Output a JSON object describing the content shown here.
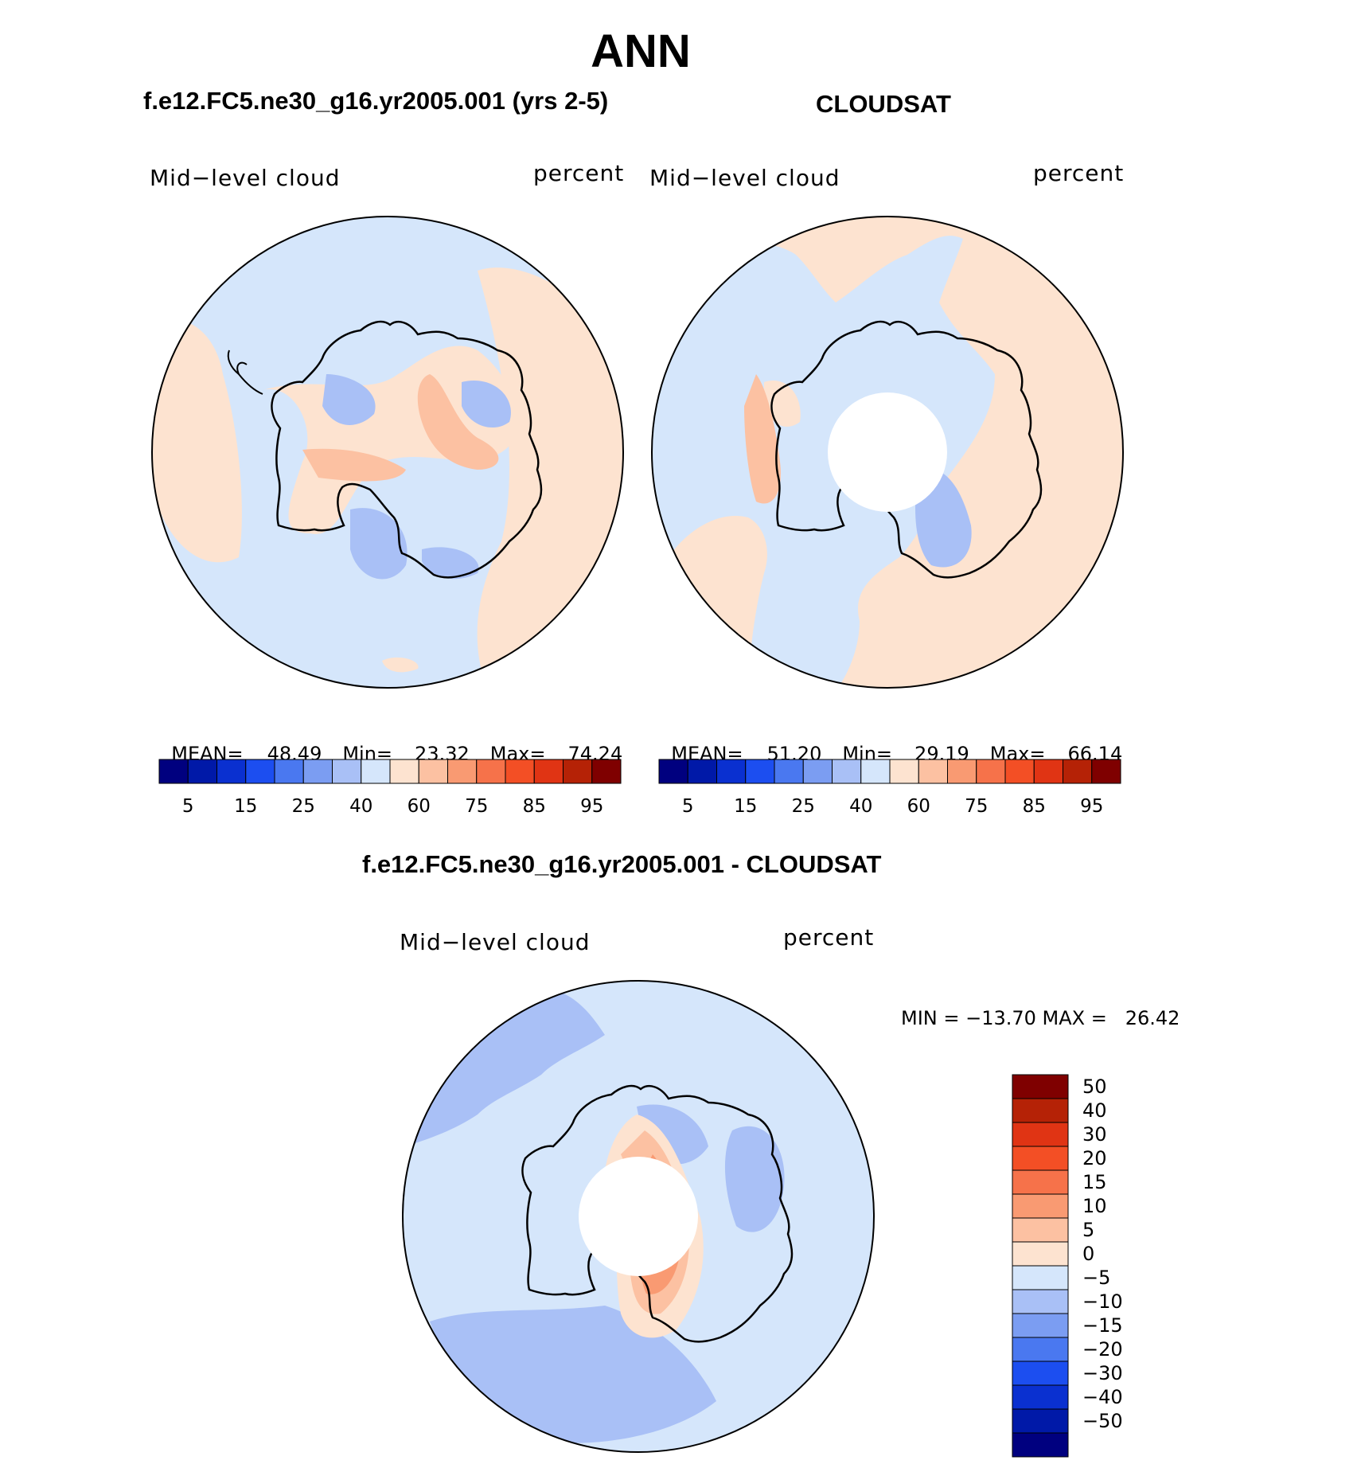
{
  "title": "ANN",
  "panels": {
    "model": {
      "case_title": "f.e12.FC5.ne30_g16.yr2005.001 (yrs 2-5)",
      "left_label": "Mid−level cloud",
      "right_label": "percent",
      "mean_label": "MEAN=",
      "mean_value": "48.49",
      "min_label": "Min=",
      "min_value": "23.32",
      "max_label": "Max=",
      "max_value": "74.24"
    },
    "obs": {
      "case_title": "CLOUDSAT",
      "left_label": "Mid−level cloud",
      "right_label": "percent",
      "mean_label": "MEAN=",
      "mean_value": "51.20",
      "min_label": "Min=",
      "min_value": "29.19",
      "max_label": "Max=",
      "max_value": "66.14"
    },
    "diff": {
      "case_title": "f.e12.FC5.ne30_g16.yr2005.001 - CLOUDSAT",
      "left_label": "Mid−level cloud",
      "right_label": "percent",
      "minmax_text": "MIN = −13.70 MAX =   26.42"
    }
  },
  "chart_data": [
    {
      "type": "heatmap",
      "projection": "south-polar-stereographic",
      "title": "f.e12.FC5.ne30_g16.yr2005.001 (yrs 2-5)",
      "variable": "Mid−level cloud",
      "units": "percent",
      "mean": 48.49,
      "min": 23.32,
      "max": 74.24,
      "colorbar": {
        "orientation": "horizontal",
        "levels": [
          5,
          10,
          15,
          20,
          25,
          30,
          40,
          50,
          60,
          70,
          75,
          80,
          85,
          90,
          95
        ],
        "tick_labels": [
          "5",
          "15",
          "25",
          "40",
          "60",
          "75",
          "85",
          "95"
        ],
        "colors": [
          "#00007f",
          "#0019a8",
          "#0a30d0",
          "#1c4ef0",
          "#4a78f0",
          "#7b9df2",
          "#a9c0f6",
          "#d5e6fb",
          "#fde3d0",
          "#fcc1a2",
          "#f99a72",
          "#f6724a",
          "#f34f25",
          "#e03414",
          "#b52206",
          "#7f0000"
        ]
      }
    },
    {
      "type": "heatmap",
      "projection": "south-polar-stereographic",
      "title": "CLOUDSAT",
      "variable": "Mid−level cloud",
      "units": "percent",
      "mean": 51.2,
      "min": 29.19,
      "max": 66.14,
      "colorbar": {
        "orientation": "horizontal",
        "levels": [
          5,
          10,
          15,
          20,
          25,
          30,
          40,
          50,
          60,
          70,
          75,
          80,
          85,
          90,
          95
        ],
        "tick_labels": [
          "5",
          "15",
          "25",
          "40",
          "60",
          "75",
          "85",
          "95"
        ],
        "colors": [
          "#00007f",
          "#0019a8",
          "#0a30d0",
          "#1c4ef0",
          "#4a78f0",
          "#7b9df2",
          "#a9c0f6",
          "#d5e6fb",
          "#fde3d0",
          "#fcc1a2",
          "#f99a72",
          "#f6724a",
          "#f34f25",
          "#e03414",
          "#b52206",
          "#7f0000"
        ]
      }
    },
    {
      "type": "heatmap",
      "projection": "south-polar-stereographic",
      "title": "f.e12.FC5.ne30_g16.yr2005.001 - CLOUDSAT",
      "variable": "Mid−level cloud",
      "units": "percent",
      "min": -13.7,
      "max": 26.42,
      "colorbar": {
        "orientation": "vertical",
        "tick_labels": [
          "50",
          "40",
          "30",
          "20",
          "15",
          "10",
          "5",
          "0",
          "−5",
          "−10",
          "−15",
          "−20",
          "−30",
          "−40",
          "−50"
        ],
        "colors": [
          "#7f0000",
          "#b52206",
          "#e03414",
          "#f34f25",
          "#f6724a",
          "#f99a72",
          "#fcc1a2",
          "#fde3d0",
          "#d5e6fb",
          "#a9c0f6",
          "#7b9df2",
          "#4a78f0",
          "#1c4ef0",
          "#0a30d0",
          "#0019a8",
          "#00007f"
        ]
      }
    }
  ]
}
